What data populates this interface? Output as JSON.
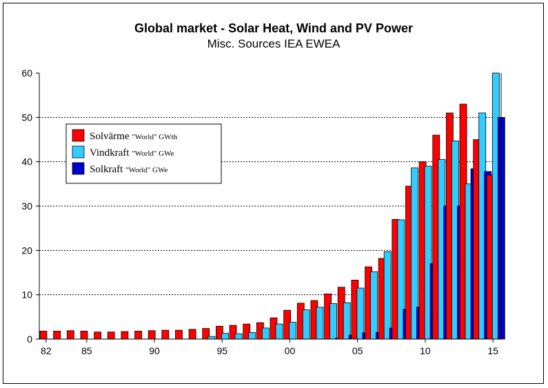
{
  "chart_data": {
    "type": "bar",
    "title": "Global market - Solar Heat, Wind and PV Power",
    "subtitle": "Misc. Sources IEA EWEA",
    "xlabel": "",
    "ylabel": "",
    "ylim": [
      0,
      60
    ],
    "yticks": [
      "0",
      "10",
      "20",
      "30",
      "40",
      "50",
      "60"
    ],
    "x_tick_labels": [
      {
        "year": 1982,
        "label": "82"
      },
      {
        "year": 1985,
        "label": "85"
      },
      {
        "year": 1990,
        "label": "90"
      },
      {
        "year": 1995,
        "label": "95"
      },
      {
        "year": 2000,
        "label": "00"
      },
      {
        "year": 2005,
        "label": "05"
      },
      {
        "year": 2010,
        "label": "10"
      },
      {
        "year": 2015,
        "label": "15"
      }
    ],
    "grid": "horizontal dotted",
    "legend_position": "upper-left",
    "categories": [
      1982,
      1983,
      1984,
      1985,
      1986,
      1987,
      1988,
      1989,
      1990,
      1991,
      1992,
      1993,
      1994,
      1995,
      1996,
      1997,
      1998,
      1999,
      2000,
      2001,
      2002,
      2003,
      2004,
      2005,
      2006,
      2007,
      2008,
      2009,
      2010,
      2011,
      2012,
      2013,
      2014,
      2015
    ],
    "series": [
      {
        "name": "Solvärme",
        "suffix": "\"World\" GWth",
        "color": "#ff0000",
        "values": [
          1.8,
          1.8,
          1.9,
          1.8,
          1.6,
          1.6,
          1.7,
          1.8,
          1.9,
          2.0,
          2.0,
          2.2,
          2.4,
          2.9,
          3.1,
          3.4,
          3.7,
          4.8,
          6.5,
          8.1,
          8.7,
          10.2,
          11.7,
          13.3,
          16.3,
          18.2,
          27.0,
          34.5,
          40.0,
          46.0,
          51.0,
          53.0,
          45.0,
          37.0
        ]
      },
      {
        "name": "Vindkraft",
        "suffix": "\"World\" GWe",
        "color": "#33ccff",
        "values": [
          0,
          0,
          0,
          0,
          0,
          0,
          0,
          0,
          0,
          0,
          0,
          0,
          0.6,
          1.3,
          1.2,
          1.5,
          2.5,
          3.4,
          3.8,
          6.6,
          7.2,
          8.0,
          8.2,
          11.5,
          15.2,
          19.7,
          26.9,
          38.6,
          39.0,
          40.5,
          44.7,
          35.0,
          51.0,
          60.0
        ]
      },
      {
        "name": "Solkraft",
        "suffix": "\"World\" GWe",
        "color": "#0000cc",
        "values": [
          0,
          0,
          0,
          0,
          0,
          0,
          0,
          0,
          0,
          0,
          0,
          0,
          0,
          0,
          0,
          0,
          0,
          0,
          0,
          0,
          0,
          0.2,
          0.9,
          1.4,
          1.5,
          2.5,
          6.7,
          7.2,
          17.0,
          30.0,
          30.0,
          38.4,
          37.8,
          50.0
        ]
      }
    ]
  }
}
